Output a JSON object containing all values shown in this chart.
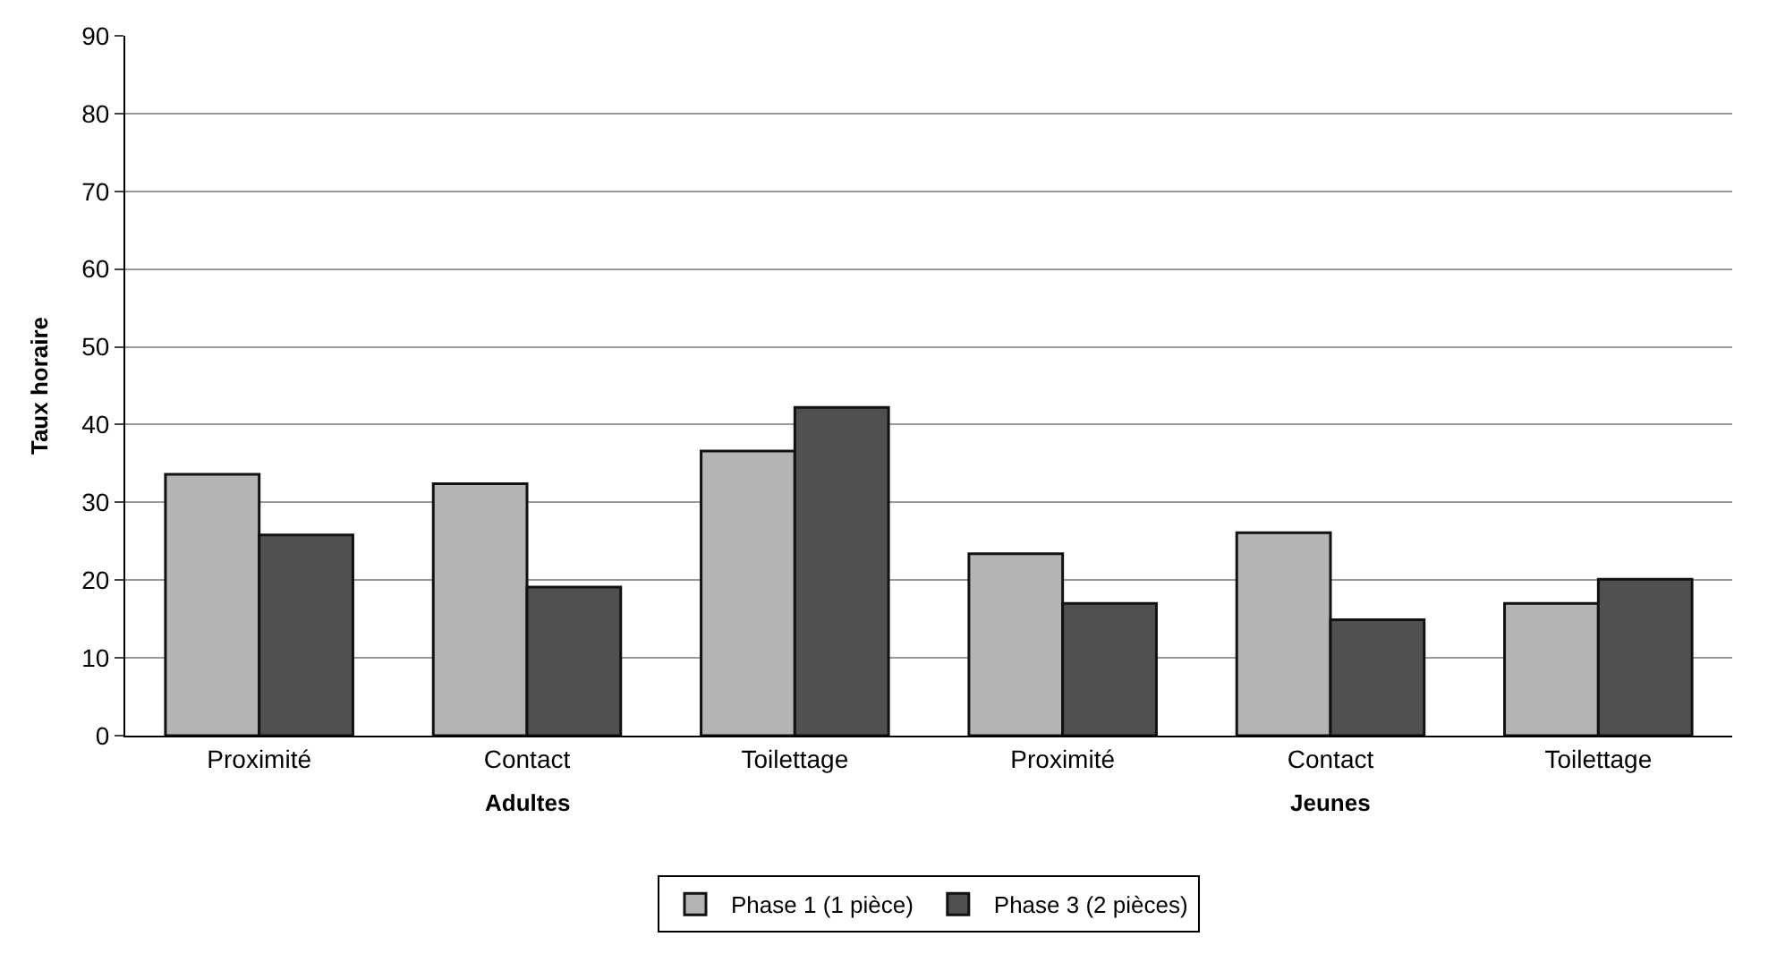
{
  "chart_data": {
    "type": "bar",
    "ylabel": "Taux horaire",
    "categories": [
      "Proximité",
      "Contact",
      "Toilettage",
      "Proximité",
      "Contact",
      "Toilettage"
    ],
    "series": [
      {
        "name": "Phase 1 (1 pièce)",
        "color": "#b4b4b4",
        "values": [
          33.6,
          32.4,
          36.6,
          23.4,
          26.1,
          17.0
        ]
      },
      {
        "name": "Phase 3 (2 pièces)",
        "color": "#505050",
        "values": [
          25.8,
          19.1,
          42.2,
          17.0,
          14.9,
          20.1
        ]
      }
    ],
    "ylim": [
      0,
      90
    ],
    "yticks": [
      0,
      10,
      20,
      30,
      40,
      50,
      60,
      70,
      80,
      90
    ],
    "grid": "y",
    "legend": "bottom",
    "annotations": [
      "Adultes",
      "Jeunes"
    ]
  }
}
